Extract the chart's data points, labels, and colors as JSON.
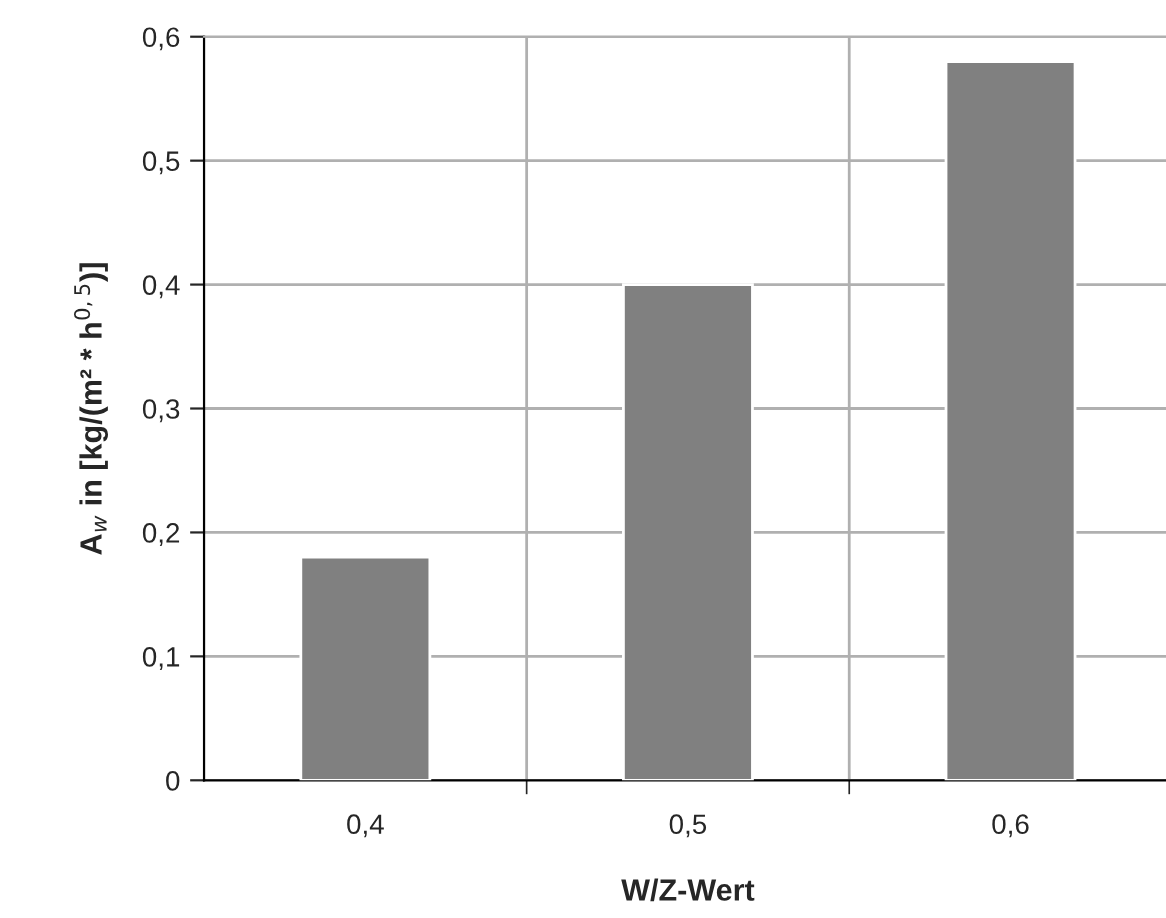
{
  "chart_data": {
    "type": "bar",
    "xlabel": "W/Z-Wert",
    "ylabel": "A$_{w}$ in [kg/(m² * h$^{0,5}$)]",
    "categories": [
      "0,4",
      "0,5",
      "0,6"
    ],
    "values": [
      0.18,
      0.4,
      0.58
    ],
    "color": "#808080",
    "ylim": [
      0,
      0.6
    ],
    "yticks": [
      {
        "value": 0,
        "label": "0"
      },
      {
        "value": 0.1,
        "label": "0,1"
      },
      {
        "value": 0.2,
        "label": "0,2"
      },
      {
        "value": 0.3,
        "label": "0,3"
      },
      {
        "value": 0.4,
        "label": "0,4"
      },
      {
        "value": 0.5,
        "label": "0,5"
      },
      {
        "value": 0.6,
        "label": "0,6"
      }
    ],
    "grid": true
  }
}
